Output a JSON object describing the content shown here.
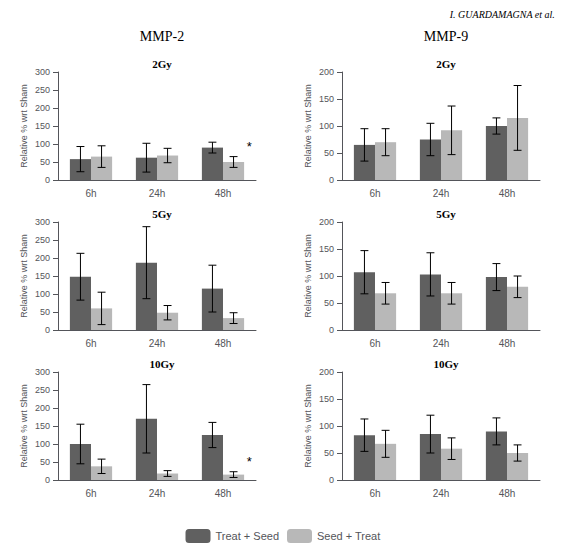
{
  "header_text": "I. GUARDAMAGNA et al.",
  "col_titles": [
    "MMP-2",
    "MMP-9"
  ],
  "legend": "bottom",
  "chart_data": [
    {
      "type": "bar",
      "title": "2Gy",
      "ylabel": "Relative % wrt Sham",
      "categories": [
        "6h",
        "24h",
        "48h"
      ],
      "series": [
        {
          "name": "Treat + Seed",
          "color": "#606060",
          "values": [
            58,
            62,
            90
          ],
          "errors": [
            35,
            40,
            15
          ]
        },
        {
          "name": "Seed + Treat",
          "color": "#b8b8b8",
          "values": [
            65,
            68,
            50
          ],
          "errors": [
            30,
            20,
            15
          ]
        }
      ],
      "annotations": [
        {
          "text": "*",
          "category": "48h",
          "series": "Seed + Treat"
        }
      ],
      "ylim": [
        0,
        300
      ],
      "yticks": [
        0,
        50,
        100,
        150,
        200,
        250,
        300
      ],
      "grid": false
    },
    {
      "type": "bar",
      "title": "2Gy",
      "ylabel": "Relative % wrt Sham",
      "categories": [
        "6h",
        "24h",
        "48h"
      ],
      "series": [
        {
          "name": "Treat + Seed",
          "color": "#606060",
          "values": [
            65,
            75,
            100
          ],
          "errors": [
            30,
            30,
            15
          ]
        },
        {
          "name": "Seed + Treat",
          "color": "#b8b8b8",
          "values": [
            70,
            92,
            115
          ],
          "errors": [
            25,
            45,
            60
          ]
        }
      ],
      "ylim": [
        0,
        200
      ],
      "yticks": [
        0,
        50,
        100,
        150,
        200
      ],
      "grid": false
    },
    {
      "type": "bar",
      "title": "5Gy",
      "ylabel": "Relative % wrt Sham",
      "categories": [
        "6h",
        "24h",
        "48h"
      ],
      "series": [
        {
          "name": "Treat + Seed",
          "color": "#606060",
          "values": [
            148,
            187,
            115
          ],
          "errors": [
            65,
            100,
            65
          ]
        },
        {
          "name": "Seed + Treat",
          "color": "#b8b8b8",
          "values": [
            60,
            48,
            33
          ],
          "errors": [
            45,
            20,
            15
          ]
        }
      ],
      "ylim": [
        0,
        300
      ],
      "yticks": [
        0,
        50,
        100,
        150,
        200,
        250,
        300
      ],
      "grid": false
    },
    {
      "type": "bar",
      "title": "5Gy",
      "ylabel": "Relative % wrt Sham",
      "categories": [
        "6h",
        "24h",
        "48h"
      ],
      "series": [
        {
          "name": "Treat + Seed",
          "color": "#606060",
          "values": [
            107,
            103,
            98
          ],
          "errors": [
            40,
            40,
            25
          ]
        },
        {
          "name": "Seed + Treat",
          "color": "#b8b8b8",
          "values": [
            68,
            68,
            80
          ],
          "errors": [
            20,
            20,
            20
          ]
        }
      ],
      "ylim": [
        0,
        200
      ],
      "yticks": [
        0,
        50,
        100,
        150,
        200
      ],
      "grid": false
    },
    {
      "type": "bar",
      "title": "10Gy",
      "ylabel": "Relative % wrt Sham",
      "categories": [
        "6h",
        "24h",
        "48h"
      ],
      "series": [
        {
          "name": "Treat + Seed",
          "color": "#606060",
          "values": [
            100,
            170,
            125
          ],
          "errors": [
            55,
            95,
            35
          ]
        },
        {
          "name": "Seed + Treat",
          "color": "#b8b8b8",
          "values": [
            38,
            18,
            15
          ],
          "errors": [
            20,
            8,
            8
          ]
        }
      ],
      "annotations": [
        {
          "text": "*",
          "category": "48h",
          "series": "Seed + Treat"
        }
      ],
      "ylim": [
        0,
        300
      ],
      "yticks": [
        0,
        50,
        100,
        150,
        200,
        250,
        300
      ],
      "grid": false
    },
    {
      "type": "bar",
      "title": "10Gy",
      "ylabel": "Relative % wrt Sham",
      "categories": [
        "6h",
        "24h",
        "48h"
      ],
      "series": [
        {
          "name": "Treat + Seed",
          "color": "#606060",
          "values": [
            83,
            85,
            90
          ],
          "errors": [
            30,
            35,
            25
          ]
        },
        {
          "name": "Seed + Treat",
          "color": "#b8b8b8",
          "values": [
            67,
            58,
            50
          ],
          "errors": [
            25,
            20,
            15
          ]
        }
      ],
      "ylim": [
        0,
        200
      ],
      "yticks": [
        0,
        50,
        100,
        150,
        200
      ],
      "grid": false
    }
  ]
}
